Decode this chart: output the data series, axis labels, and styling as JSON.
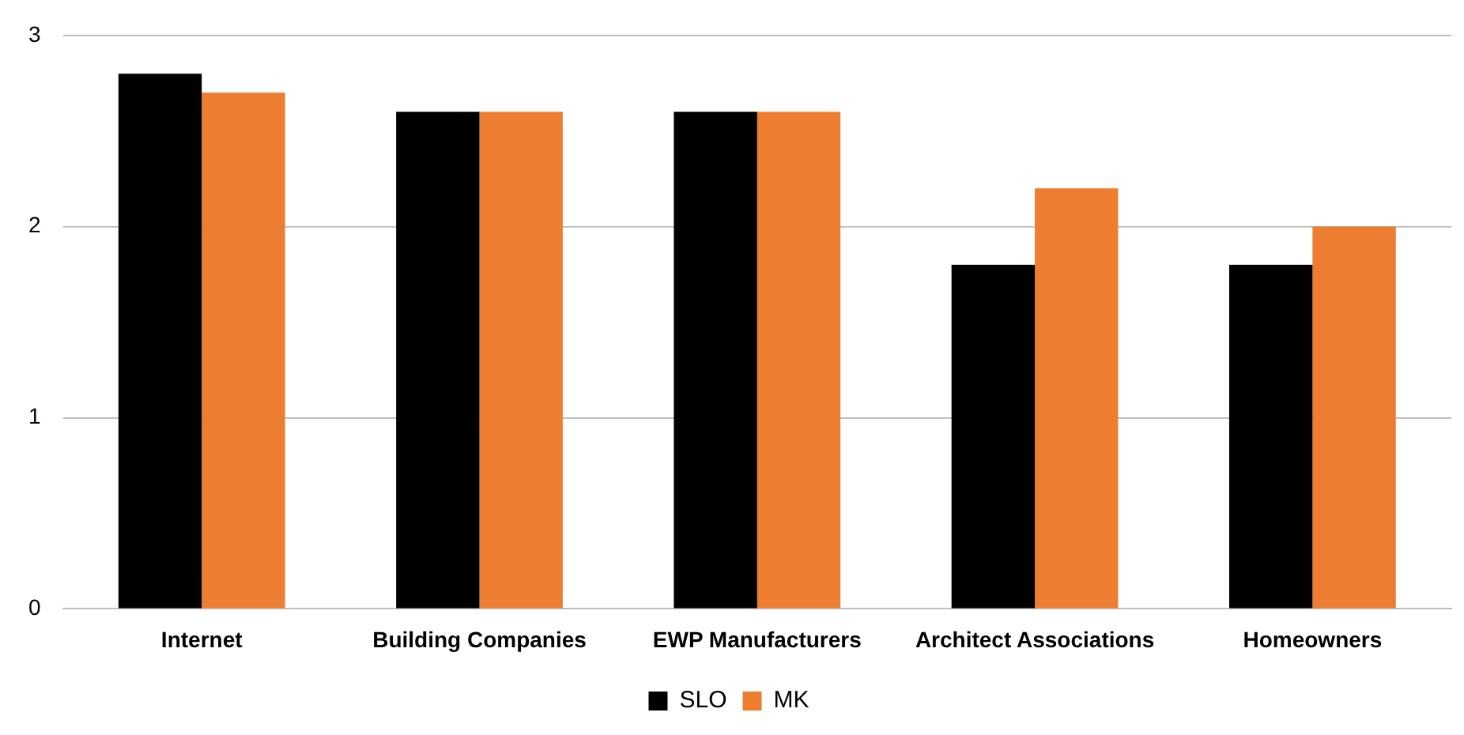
{
  "chart_data": {
    "type": "bar",
    "categories": [
      "Internet",
      "Building Companies",
      "EWP Manufacturers",
      "Architect Associations",
      "Homeowners"
    ],
    "series": [
      {
        "name": "SLO",
        "color": "#000000",
        "values": [
          2.8,
          2.6,
          2.6,
          1.8,
          1.8
        ]
      },
      {
        "name": "MK",
        "color": "#ed7d31",
        "values": [
          2.7,
          2.6,
          2.6,
          2.2,
          2.0
        ]
      }
    ],
    "ylim": [
      0,
      3
    ],
    "yticks": [
      0,
      1,
      2,
      3
    ],
    "grid": "y",
    "legend": "bottom"
  }
}
